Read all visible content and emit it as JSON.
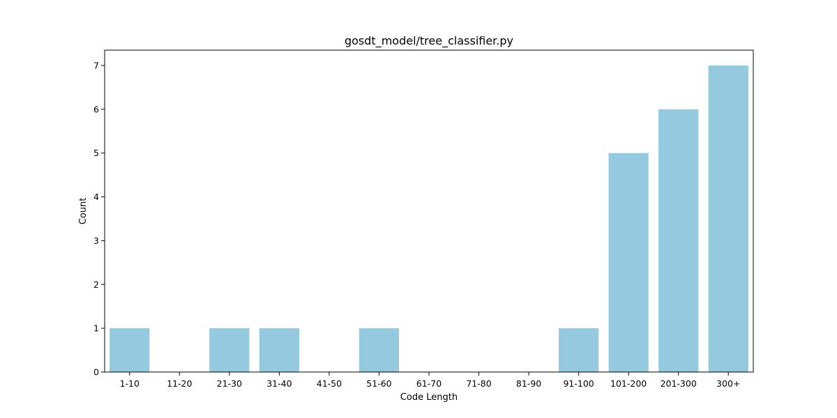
{
  "chart_data": {
    "type": "bar",
    "title": "gosdt_model/tree_classifier.py",
    "xlabel": "Code Length",
    "ylabel": "Count",
    "categories": [
      "1-10",
      "11-20",
      "21-30",
      "31-40",
      "41-50",
      "51-60",
      "61-70",
      "71-80",
      "81-90",
      "91-100",
      "101-200",
      "201-300",
      "300+"
    ],
    "values": [
      1,
      0,
      1,
      1,
      0,
      1,
      0,
      0,
      0,
      1,
      5,
      6,
      7
    ],
    "ylim": [
      0,
      7.35
    ],
    "yticks": [
      0,
      1,
      2,
      3,
      4,
      5,
      6,
      7
    ],
    "bar_color": "#95c9df",
    "grid": false,
    "legend": "none"
  }
}
